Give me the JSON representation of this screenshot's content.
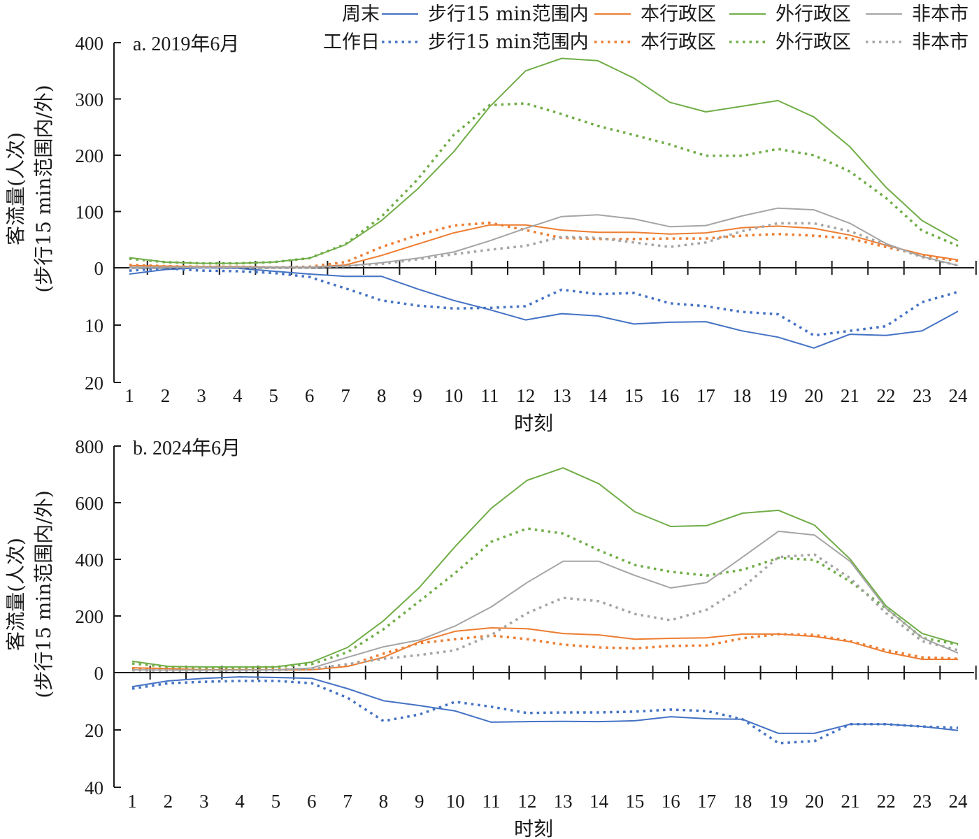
{
  "legend": {
    "row_labels": [
      "周末",
      "工作日"
    ],
    "series_labels": [
      "步行15 min范围内",
      "本行政区",
      "外行政区",
      "非本市"
    ],
    "colors": {
      "walk": "#4472C4",
      "district": "#ED7D31",
      "other_district": "#70AD47",
      "non_city": "#A5A5A5"
    }
  },
  "chart_data": [
    {
      "type": "line",
      "title": "a. 2019年6月",
      "xlabel": "时刻",
      "ylabel": [
        "客流量(人次)",
        "(步行15 min范围内/外)"
      ],
      "categories": [
        "1",
        "2",
        "3",
        "4",
        "5",
        "6",
        "7",
        "8",
        "9",
        "10",
        "11",
        "12",
        "13",
        "14",
        "15",
        "16",
        "17",
        "18",
        "19",
        "20",
        "21",
        "22",
        "23",
        "24"
      ],
      "upper_axis": {
        "ylim": [
          0,
          400
        ],
        "ticks": [
          "0",
          "100",
          "200",
          "300",
          "400"
        ]
      },
      "lower_axis": {
        "ylim": [
          0,
          20
        ],
        "ticks": [
          "0",
          "10",
          "20"
        ],
        "direction": "downward"
      },
      "series": [
        {
          "name": "周末 步行15 min范围内",
          "group": "walk",
          "style": "solid",
          "axis": "lower",
          "values": [
            1.1,
            0.3,
            0,
            0.1,
            0.6,
            1.1,
            1.5,
            1.5,
            3.7,
            5.7,
            7.3,
            9.1,
            8.0,
            8.4,
            9.8,
            9.5,
            9.4,
            11.0,
            12.1,
            14.0,
            11.6,
            11.8,
            11.0,
            7.6
          ]
        },
        {
          "name": "工作日 步行15 min范围内",
          "group": "walk",
          "style": "dotted",
          "axis": "lower",
          "values": [
            0.5,
            0.1,
            0.5,
            0.6,
            0.9,
            1.6,
            3.6,
            5.7,
            6.6,
            7.1,
            7.0,
            6.7,
            3.8,
            4.6,
            4.4,
            6.2,
            6.7,
            7.7,
            8.1,
            11.8,
            11.0,
            10.2,
            6.0,
            4.2
          ]
        },
        {
          "name": "周末 本行政区",
          "group": "district",
          "style": "solid",
          "axis": "upper",
          "values": [
            4,
            3,
            2,
            2,
            1,
            1,
            5,
            22,
            42,
            62,
            76,
            76,
            67,
            63,
            63,
            60,
            62,
            71,
            74,
            70,
            58,
            40,
            24,
            14
          ]
        },
        {
          "name": "工作日 本行政区",
          "group": "district",
          "style": "dotted",
          "axis": "upper",
          "values": [
            5,
            3,
            2,
            2,
            1,
            2,
            10,
            37,
            58,
            75,
            80,
            67,
            53,
            51,
            51,
            52,
            52,
            57,
            60,
            57,
            52,
            37,
            22,
            12
          ]
        },
        {
          "name": "周末 外行政区",
          "group": "other_district",
          "style": "solid",
          "axis": "upper",
          "values": [
            18,
            10,
            8,
            8,
            10,
            17,
            41,
            84,
            140,
            206,
            286,
            350,
            372,
            368,
            337,
            294,
            277,
            287,
            297,
            268,
            215,
            143,
            84,
            48
          ]
        },
        {
          "name": "工作日 外行政区",
          "group": "other_district",
          "style": "dotted",
          "axis": "upper",
          "values": [
            16,
            10,
            8,
            8,
            10,
            17,
            42,
            91,
            157,
            236,
            289,
            292,
            273,
            252,
            236,
            219,
            199,
            199,
            211,
            200,
            171,
            124,
            66,
            39
          ]
        },
        {
          "name": "周末 非本市",
          "group": "non_city",
          "style": "solid",
          "axis": "upper",
          "values": [
            1,
            1,
            1,
            1,
            1,
            1,
            3,
            9,
            17,
            28,
            48,
            70,
            91,
            94,
            87,
            73,
            75,
            92,
            106,
            103,
            79,
            43,
            20,
            4
          ]
        },
        {
          "name": "工作日 非本市",
          "group": "non_city",
          "style": "dotted",
          "axis": "upper",
          "values": [
            1,
            1,
            1,
            1,
            1,
            1,
            3,
            7,
            15,
            24,
            32,
            39,
            55,
            53,
            45,
            37,
            45,
            65,
            79,
            79,
            65,
            41,
            19,
            4
          ]
        }
      ]
    },
    {
      "type": "line",
      "title": "b. 2024年6月",
      "xlabel": "时刻",
      "ylabel": [
        "客流量(人次)",
        "(步行15 min范围内/外)"
      ],
      "categories": [
        "1",
        "2",
        "3",
        "4",
        "5",
        "6",
        "7",
        "8",
        "9",
        "10",
        "11",
        "12",
        "13",
        "14",
        "15",
        "16",
        "17",
        "18",
        "19",
        "20",
        "21",
        "22",
        "23",
        "24"
      ],
      "upper_axis": {
        "ylim": [
          0,
          800
        ],
        "ticks": [
          "0",
          "200",
          "400",
          "600",
          "800"
        ]
      },
      "lower_axis": {
        "ylim": [
          0,
          40
        ],
        "ticks": [
          "0",
          "20",
          "40"
        ],
        "direction": "downward"
      },
      "series": [
        {
          "name": "周末 步行15 min范围内",
          "group": "walk",
          "style": "solid",
          "axis": "lower",
          "values": [
            4.9,
            2.9,
            2.0,
            1.5,
            1.7,
            2.0,
            5.6,
            9.8,
            11.5,
            13.4,
            17.3,
            17.1,
            17.0,
            17.1,
            16.8,
            15.4,
            16.1,
            16.3,
            21.2,
            21.2,
            18.0,
            18.0,
            18.8,
            20.2
          ]
        },
        {
          "name": "工作日 步行15 min范围内",
          "group": "walk",
          "style": "dotted",
          "axis": "lower",
          "values": [
            5.6,
            3.7,
            3.2,
            2.9,
            2.9,
            3.7,
            8.8,
            16.9,
            14.6,
            10.2,
            11.9,
            14.1,
            13.9,
            13.9,
            13.6,
            12.9,
            13.4,
            16.3,
            24.6,
            23.9,
            18.0,
            18.0,
            18.8,
            19.3
          ]
        },
        {
          "name": "周末 本行政区",
          "group": "district",
          "style": "solid",
          "axis": "upper",
          "values": [
            17,
            14,
            10,
            10,
            10,
            10,
            22,
            54,
            109,
            146,
            158,
            155,
            138,
            133,
            118,
            121,
            123,
            136,
            136,
            128,
            109,
            72,
            47,
            47
          ]
        },
        {
          "name": "工作日 本行政区",
          "group": "district",
          "style": "dotted",
          "axis": "upper",
          "values": [
            15,
            12,
            12,
            12,
            12,
            12,
            25,
            67,
            104,
            118,
            131,
            118,
            99,
            89,
            86,
            94,
            96,
            121,
            136,
            133,
            111,
            79,
            54,
            49
          ]
        },
        {
          "name": "周末 外行政区",
          "group": "other_district",
          "style": "solid",
          "axis": "upper",
          "values": [
            40,
            22,
            20,
            20,
            20,
            37,
            89,
            183,
            301,
            446,
            580,
            679,
            723,
            667,
            568,
            516,
            519,
            563,
            573,
            521,
            400,
            235,
            138,
            101
          ]
        },
        {
          "name": "工作日 外行政区",
          "group": "other_district",
          "style": "dotted",
          "axis": "upper",
          "values": [
            32,
            20,
            18,
            18,
            20,
            30,
            72,
            153,
            252,
            352,
            462,
            509,
            491,
            432,
            380,
            356,
            343,
            363,
            405,
            398,
            321,
            227,
            123,
            99
          ]
        },
        {
          "name": "周末 非本市",
          "group": "non_city",
          "style": "solid",
          "axis": "upper",
          "values": [
            10,
            9,
            9,
            9,
            10,
            16,
            54,
            91,
            115,
            165,
            232,
            318,
            393,
            393,
            343,
            299,
            318,
            408,
            499,
            486,
            392,
            227,
            123,
            69
          ]
        },
        {
          "name": "工作日 非本市",
          "group": "non_city",
          "style": "dotted",
          "axis": "upper",
          "values": [
            8,
            7,
            7,
            7,
            8,
            12,
            30,
            49,
            62,
            79,
            133,
            210,
            264,
            252,
            207,
            185,
            222,
            301,
            408,
            417,
            333,
            210,
            111,
            79
          ]
        }
      ]
    }
  ]
}
